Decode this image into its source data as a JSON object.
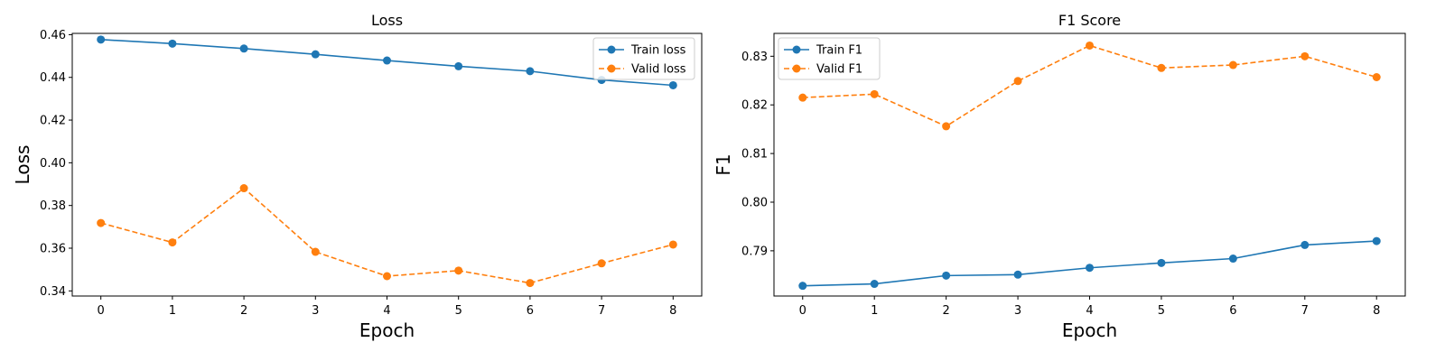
{
  "chart_data": [
    {
      "type": "line",
      "title": "Loss",
      "xlabel": "Epoch",
      "ylabel": "Loss",
      "x": [
        0,
        1,
        2,
        3,
        4,
        5,
        6,
        7,
        8
      ],
      "xticks": [
        "0",
        "1",
        "2",
        "3",
        "4",
        "5",
        "6",
        "7",
        "8"
      ],
      "xlim": [
        -0.4,
        8.4
      ],
      "ylim": [
        0.3376,
        0.4606
      ],
      "yticks": [
        "0.34",
        "0.36",
        "0.38",
        "0.40",
        "0.42",
        "0.44",
        "0.46"
      ],
      "legend_position": "top-right",
      "grid": false,
      "series": [
        {
          "name": "Train loss",
          "color": "#1f77b4",
          "linestyle": "solid",
          "marker": "circle",
          "values": [
            0.4577,
            0.4558,
            0.4535,
            0.4508,
            0.4479,
            0.4452,
            0.4429,
            0.4388,
            0.4363
          ]
        },
        {
          "name": "Valid loss",
          "color": "#ff7f0e",
          "linestyle": "dashed",
          "marker": "circle",
          "values": [
            0.3718,
            0.3627,
            0.3881,
            0.3583,
            0.3469,
            0.3495,
            0.3437,
            0.3529,
            0.3617
          ]
        }
      ]
    },
    {
      "type": "line",
      "title": "F1 Score",
      "xlabel": "Epoch",
      "ylabel": "F1",
      "x": [
        0,
        1,
        2,
        3,
        4,
        5,
        6,
        7,
        8
      ],
      "xticks": [
        "0",
        "1",
        "2",
        "3",
        "4",
        "5",
        "6",
        "7",
        "8"
      ],
      "xlim": [
        -0.4,
        8.4
      ],
      "ylim": [
        0.7807,
        0.8347
      ],
      "yticks": [
        "0.79",
        "0.80",
        "0.81",
        "0.82",
        "0.83"
      ],
      "legend_position": "top-left",
      "grid": false,
      "series": [
        {
          "name": "Train F1",
          "color": "#1f77b4",
          "linestyle": "solid",
          "marker": "circle",
          "values": [
            0.7828,
            0.7832,
            0.7849,
            0.7851,
            0.7865,
            0.7875,
            0.7884,
            0.7912,
            0.792
          ]
        },
        {
          "name": "Valid F1",
          "color": "#ff7f0e",
          "linestyle": "dashed",
          "marker": "circle",
          "values": [
            0.8215,
            0.8222,
            0.8156,
            0.8249,
            0.8322,
            0.8276,
            0.8282,
            0.83,
            0.8257
          ]
        }
      ]
    }
  ]
}
